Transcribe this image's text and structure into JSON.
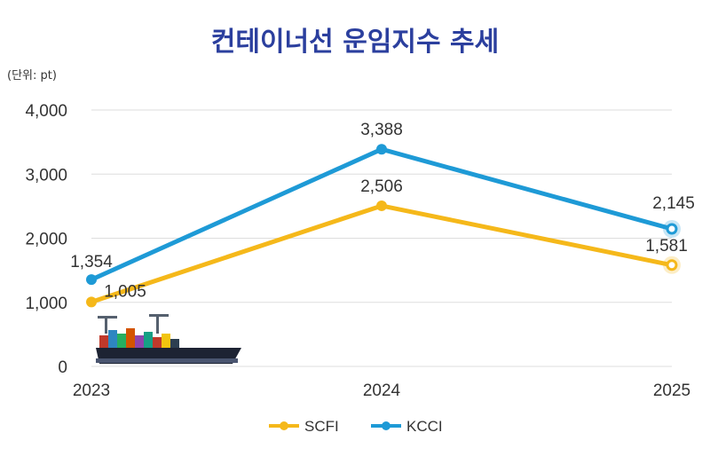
{
  "title": "컨테이너선 운임지수 추세",
  "unit": "(단위: pt)",
  "colors": {
    "SCFI": "#f5b81a",
    "KCCI": "#1e9ad6",
    "grid": "#dddddd",
    "title": "#2b3f9e"
  },
  "chart_data": {
    "type": "line",
    "title": "컨테이너선 운임지수 추세",
    "ylabel": "(단위: pt)",
    "categories": [
      "2023",
      "2024",
      "2025"
    ],
    "ylim": [
      0,
      4000
    ],
    "yticks": [
      0,
      1000,
      2000,
      3000,
      4000
    ],
    "ytick_labels": [
      "0",
      "1,000",
      "2,000",
      "3,000",
      "4,000"
    ],
    "grid": true,
    "legend": "bottom",
    "series": [
      {
        "name": "SCFI",
        "values": [
          1005,
          2506,
          1581
        ],
        "labels": [
          "1,005",
          "2,506",
          "1,581"
        ]
      },
      {
        "name": "KCCI",
        "values": [
          1354,
          3388,
          2145
        ],
        "labels": [
          "1,354",
          "3,388",
          "2,145"
        ]
      }
    ]
  }
}
